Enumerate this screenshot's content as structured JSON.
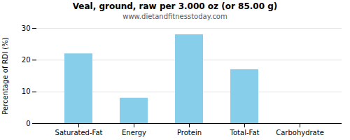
{
  "chart_data": {
    "type": "bar",
    "title": "Veal, ground, raw per 3.000 oz (or 85.00 g)",
    "subtitle": "www.dietandfitnesstoday.com",
    "categories": [
      "Saturated-Fat",
      "Energy",
      "Protein",
      "Total-Fat",
      "Carbohydrate"
    ],
    "values": [
      22,
      8,
      28,
      17,
      0
    ],
    "color": "#87CEEB",
    "ylabel": "Percentage of RDI (%)",
    "ylim": [
      0,
      30
    ],
    "yticks": [
      0,
      10,
      20,
      30
    ],
    "grid": true
  }
}
